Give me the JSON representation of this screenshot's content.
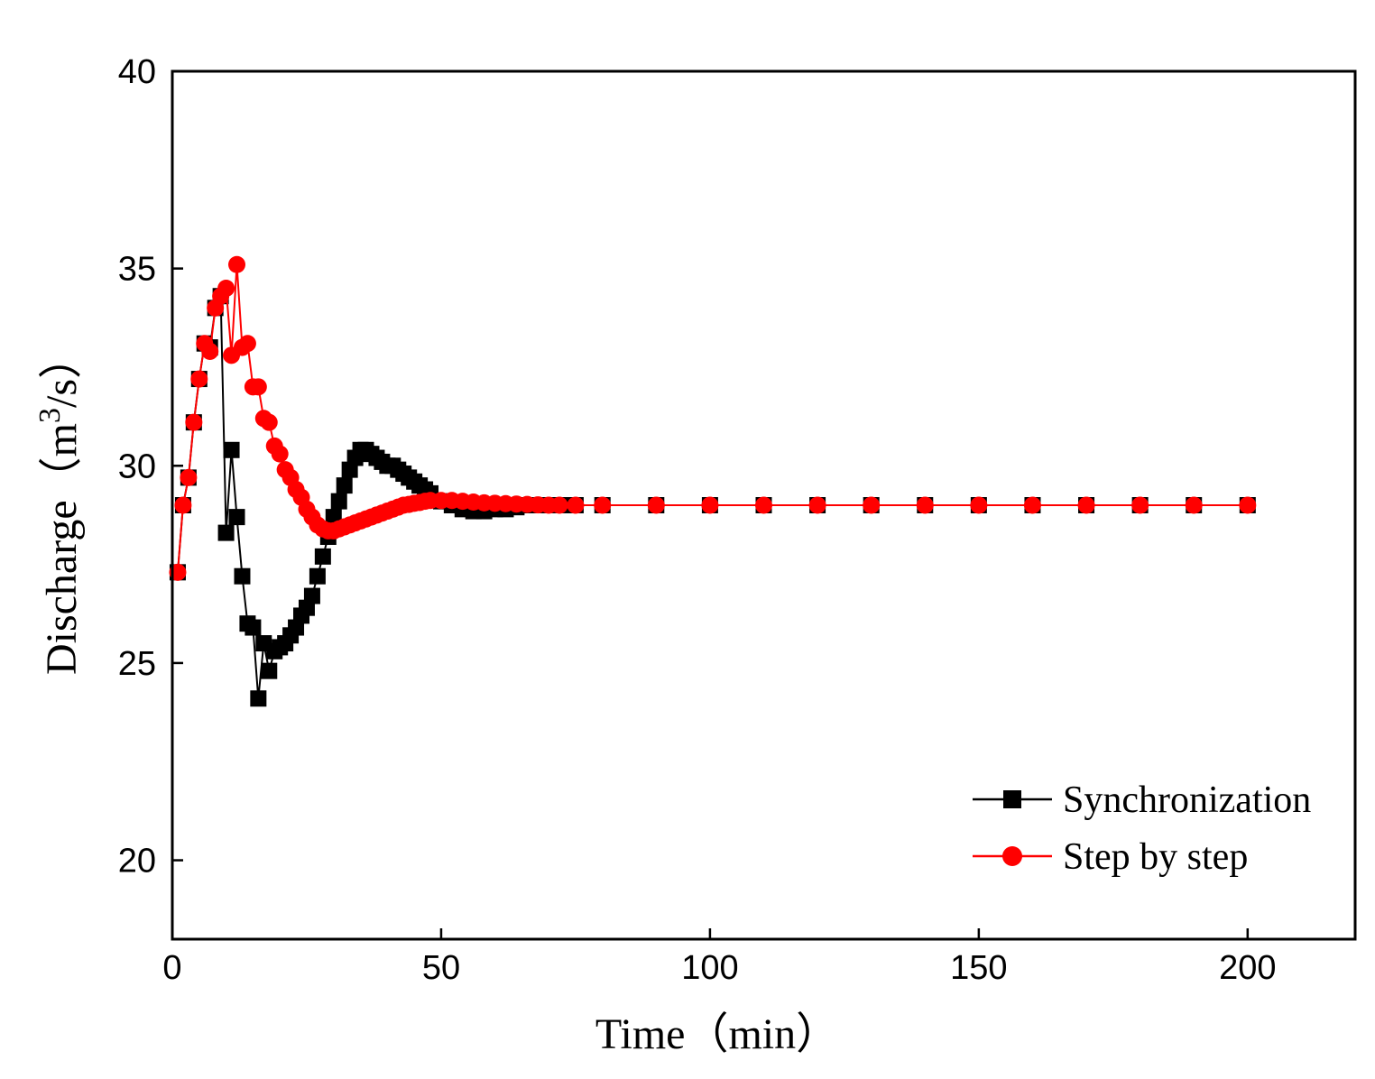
{
  "chart_data": {
    "type": "line",
    "title": "",
    "xlabel": "Time（min）",
    "ylabel_main": "Discharge（m",
    "ylabel_sup": "3",
    "ylabel_tail": "/s）",
    "xlim": [
      0,
      220
    ],
    "ylim": [
      18,
      40
    ],
    "x_ticks": [
      0,
      50,
      100,
      150,
      200
    ],
    "x_tick_labels": [
      "0",
      "50",
      "100",
      "150",
      "200"
    ],
    "y_ticks": [
      20,
      25,
      30,
      35,
      40
    ],
    "y_tick_labels": [
      "20",
      "25",
      "30",
      "35",
      "40"
    ],
    "grid": false,
    "legend_position": "bottom-right",
    "series": [
      {
        "name": "Synchronization",
        "color": "#000000",
        "marker": "square",
        "x": [
          1,
          2,
          3,
          4,
          5,
          6,
          7,
          8,
          9,
          10,
          11,
          12,
          13,
          14,
          15,
          16,
          17,
          18,
          19,
          20,
          21,
          22,
          23,
          24,
          25,
          26,
          27,
          28,
          29,
          30,
          31,
          32,
          33,
          34,
          35,
          36,
          37,
          38,
          39,
          40,
          41,
          42,
          43,
          44,
          45,
          46,
          47,
          48,
          50,
          52,
          54,
          56,
          58,
          60,
          62,
          64,
          66,
          68,
          70,
          72,
          75,
          80,
          90,
          100,
          110,
          120,
          130,
          140,
          150,
          160,
          170,
          180,
          190,
          200
        ],
        "y": [
          27.3,
          29.0,
          29.7,
          31.1,
          32.2,
          33.1,
          33.0,
          34.0,
          34.3,
          28.3,
          30.4,
          28.7,
          27.2,
          26.0,
          25.9,
          24.1,
          25.5,
          24.8,
          25.3,
          25.4,
          25.5,
          25.7,
          25.9,
          26.2,
          26.4,
          26.7,
          27.2,
          27.7,
          28.2,
          28.7,
          29.1,
          29.5,
          29.9,
          30.2,
          30.4,
          30.4,
          30.3,
          30.2,
          30.1,
          30.0,
          30.0,
          29.9,
          29.8,
          29.7,
          29.6,
          29.5,
          29.4,
          29.3,
          29.1,
          29.0,
          28.9,
          28.85,
          28.85,
          28.9,
          28.9,
          28.95,
          29.0,
          29.0,
          29.0,
          29.0,
          29.0,
          29.0,
          29.0,
          29.0,
          29.0,
          29.0,
          29.0,
          29.0,
          29.0,
          29.0,
          29.0,
          29.0,
          29.0,
          29.0
        ]
      },
      {
        "name": "Step by step",
        "color": "#ff0000",
        "marker": "circle",
        "x": [
          1,
          2,
          3,
          4,
          5,
          6,
          7,
          8,
          9,
          10,
          11,
          12,
          13,
          14,
          15,
          16,
          17,
          18,
          19,
          20,
          21,
          22,
          23,
          24,
          25,
          26,
          27,
          28,
          29,
          30,
          31,
          32,
          33,
          34,
          35,
          36,
          37,
          38,
          39,
          40,
          41,
          42,
          43,
          44,
          45,
          46,
          47,
          48,
          50,
          52,
          54,
          56,
          58,
          60,
          62,
          64,
          66,
          68,
          70,
          72,
          75,
          80,
          90,
          100,
          110,
          120,
          130,
          140,
          150,
          160,
          170,
          180,
          190,
          200
        ],
        "y": [
          27.3,
          29.0,
          29.7,
          31.1,
          32.2,
          33.1,
          32.9,
          34.0,
          34.3,
          34.5,
          32.8,
          35.1,
          33.0,
          33.1,
          32.0,
          32.0,
          31.2,
          31.1,
          30.5,
          30.3,
          29.9,
          29.7,
          29.4,
          29.2,
          28.9,
          28.7,
          28.5,
          28.4,
          28.35,
          28.35,
          28.4,
          28.45,
          28.5,
          28.55,
          28.6,
          28.65,
          28.7,
          28.75,
          28.8,
          28.85,
          28.9,
          28.95,
          29.0,
          29.02,
          29.05,
          29.07,
          29.1,
          29.12,
          29.12,
          29.12,
          29.1,
          29.08,
          29.06,
          29.05,
          29.04,
          29.03,
          29.02,
          29.01,
          29.0,
          29.0,
          29.0,
          29.0,
          29.0,
          29.0,
          29.0,
          29.0,
          29.0,
          29.0,
          29.0,
          29.0,
          29.0,
          29.0,
          29.0,
          29.0
        ]
      }
    ]
  }
}
